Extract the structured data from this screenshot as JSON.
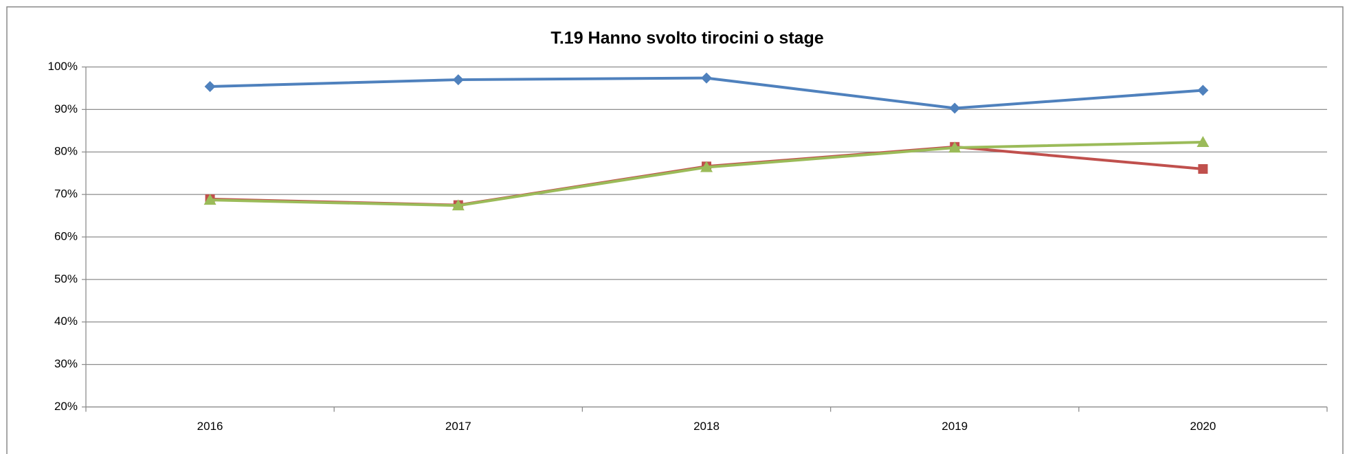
{
  "chart_data": {
    "type": "line",
    "title": "T.19 Hanno svolto tirocini o stage",
    "categories": [
      "2016",
      "2017",
      "2018",
      "2019",
      "2020"
    ],
    "series": [
      {
        "color": "#4f81bd",
        "marker": "diamond",
        "values": [
          95.4,
          97.0,
          97.4,
          90.3,
          94.5
        ]
      },
      {
        "color": "#c0504d",
        "marker": "square",
        "values": [
          68.9,
          67.5,
          76.6,
          81.2,
          76.0
        ]
      },
      {
        "color": "#9bbb59",
        "marker": "triangle",
        "values": [
          68.7,
          67.4,
          76.4,
          81.0,
          82.3
        ]
      }
    ],
    "ylim": [
      20,
      100
    ],
    "yticks": [
      {
        "value": 20,
        "label": "20%"
      },
      {
        "value": 30,
        "label": "30%"
      },
      {
        "value": 40,
        "label": "40%"
      },
      {
        "value": 50,
        "label": "50%"
      },
      {
        "value": 60,
        "label": "60%"
      },
      {
        "value": 70,
        "label": "70%"
      },
      {
        "value": 80,
        "label": "80%"
      },
      {
        "value": 90,
        "label": "90%"
      },
      {
        "value": 100,
        "label": "100%"
      }
    ],
    "grid": true
  }
}
